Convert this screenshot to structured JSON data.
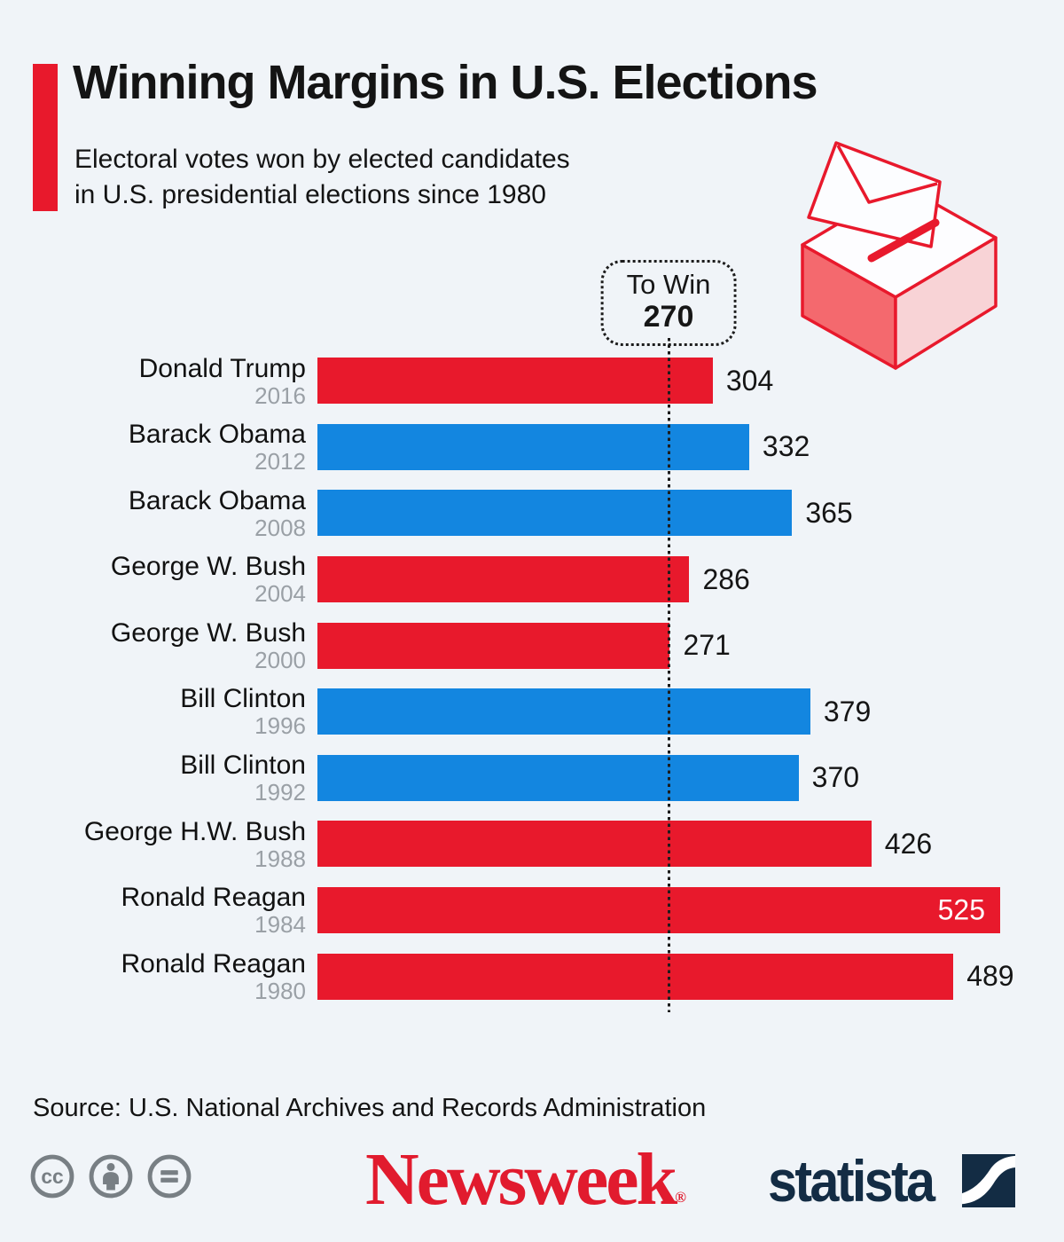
{
  "header": {
    "title": "Winning Margins in U.S. Elections",
    "subtitle_line1": "Electoral votes won by elected candidates",
    "subtitle_line2": "in U.S. presidential elections since 1980"
  },
  "threshold_box": {
    "label": "To Win",
    "value": "270"
  },
  "chart_data": {
    "type": "bar",
    "orientation": "horizontal",
    "title": "Electoral votes won by elected candidates in U.S. presidential elections since 1980",
    "xmax": 525,
    "threshold": 270,
    "grid": false,
    "colors": {
      "republican": "#e8192c",
      "democrat": "#1386e0"
    },
    "bars": [
      {
        "candidate": "Donald Trump",
        "year": "2016",
        "value": 304,
        "party": "republican",
        "label_inside": false
      },
      {
        "candidate": "Barack Obama",
        "year": "2012",
        "value": 332,
        "party": "democrat",
        "label_inside": false
      },
      {
        "candidate": "Barack Obama",
        "year": "2008",
        "value": 365,
        "party": "democrat",
        "label_inside": false
      },
      {
        "candidate": "George W. Bush",
        "year": "2004",
        "value": 286,
        "party": "republican",
        "label_inside": false
      },
      {
        "candidate": "George W. Bush",
        "year": "2000",
        "value": 271,
        "party": "republican",
        "label_inside": false
      },
      {
        "candidate": "Bill Clinton",
        "year": "1996",
        "value": 379,
        "party": "democrat",
        "label_inside": false
      },
      {
        "candidate": "Bill Clinton",
        "year": "1992",
        "value": 370,
        "party": "democrat",
        "label_inside": false
      },
      {
        "candidate": "George H.W. Bush",
        "year": "1988",
        "value": 426,
        "party": "republican",
        "label_inside": false
      },
      {
        "candidate": "Ronald Reagan",
        "year": "1984",
        "value": 525,
        "party": "republican",
        "label_inside": true
      },
      {
        "candidate": "Ronald Reagan",
        "year": "1980",
        "value": 489,
        "party": "republican",
        "label_inside": false
      }
    ]
  },
  "footer": {
    "source": "Source: U.S. National Archives and Records Administration",
    "license_icons": [
      "cc-icon",
      "attribution-person-icon",
      "equals-icon"
    ],
    "newsweek_logo": "Newsweek",
    "registered_mark": "®",
    "statista_logo": "statista"
  },
  "style_colors": {
    "accent_red": "#e8192c",
    "democrat_blue": "#1386e0",
    "newsweek_red": "#e11b2e",
    "statista_navy": "#132c44",
    "license_gray": "#787f84",
    "background": "#f0f4f8"
  }
}
